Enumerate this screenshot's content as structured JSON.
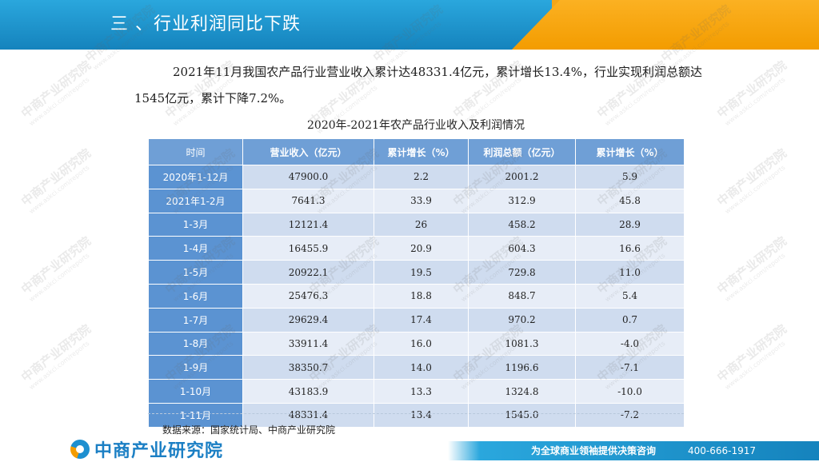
{
  "header": {
    "title": "三 、行业利润同比下跌",
    "colors": {
      "blue": "#1a93c9",
      "orange": "#f7a300"
    }
  },
  "intro": {
    "line1": "2021年11月我国农产品行业营业收入累计达48331.4亿元，累计增长13.4%，行业实",
    "line2": "现利润总额达1545亿元，累计下降7.2%。"
  },
  "table": {
    "caption": "2020年-2021年农产品行业收入及利润情况",
    "headers": [
      "时间",
      "营业收入（亿元）",
      "累计增长（%）",
      "利润总额（亿元）",
      "累计增长（%）"
    ],
    "rows": [
      [
        "2020年1-12月",
        "47900.0",
        "2.2",
        "2001.2",
        "5.9"
      ],
      [
        "2021年1-2月",
        "7641.3",
        "33.9",
        "312.9",
        "45.8"
      ],
      [
        "1-3月",
        "12121.4",
        "26",
        "458.2",
        "28.9"
      ],
      [
        "1-4月",
        "16455.9",
        "20.9",
        "604.3",
        "16.6"
      ],
      [
        "1-5月",
        "20922.1",
        "19.5",
        "729.8",
        "11.0"
      ],
      [
        "1-6月",
        "25476.3",
        "18.8",
        "848.7",
        "5.4"
      ],
      [
        "1-7月",
        "29629.4",
        "17.4",
        "970.2",
        "0.7"
      ],
      [
        "1-8月",
        "33911.4",
        "16.0",
        "1081.3",
        "-4.0"
      ],
      [
        "1-9月",
        "38350.7",
        "14.0",
        "1196.6",
        "-7.1"
      ],
      [
        "1-10月",
        "43183.9",
        "13.3",
        "1324.8",
        "-10.0"
      ],
      [
        "1-11月",
        "48331.4",
        "13.4",
        "1545.0",
        "-7.2"
      ]
    ],
    "colors": {
      "header": "#6f9fd6",
      "period_cell": "#5b93d2",
      "row_odd": "#cfdcef",
      "row_even": "#e7edf7"
    }
  },
  "source": "数据来源：国家统计局、中商产业研究院",
  "footer": {
    "brand": "中商产业研究院",
    "logo_icon": "zhongshang-logo-icon",
    "slogan": "为全球商业领袖提供决策咨询",
    "phone": "400-666-1917"
  },
  "watermark": {
    "text": "中商产业研究院",
    "subtext": "www.askci.com/reports"
  }
}
